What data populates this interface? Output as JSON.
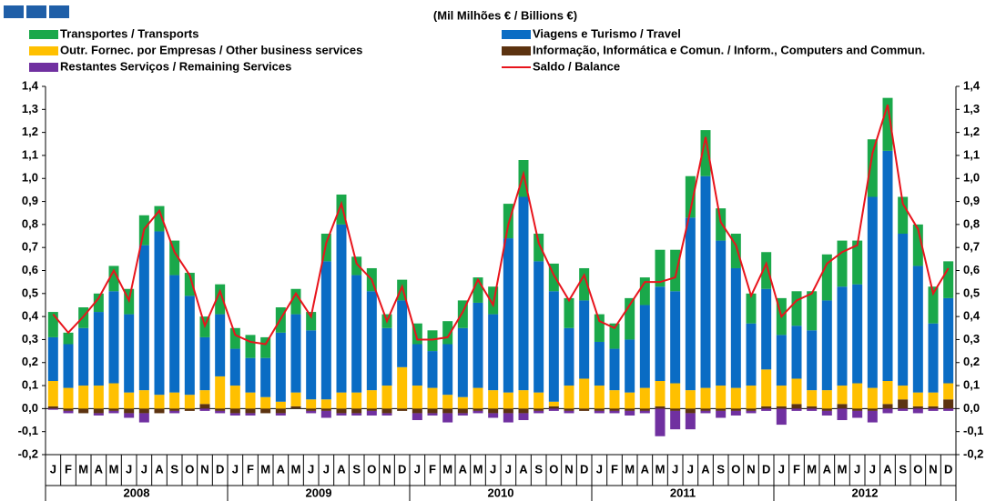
{
  "chart_data": {
    "type": "bar",
    "title": "(Mil Milhões € / Billions €)",
    "categories": [
      "J",
      "F",
      "M",
      "A",
      "M",
      "J",
      "J",
      "A",
      "S",
      "O",
      "N",
      "D",
      "J",
      "F",
      "M",
      "A",
      "M",
      "J",
      "J",
      "A",
      "S",
      "O",
      "N",
      "D",
      "J",
      "F",
      "M",
      "A",
      "M",
      "J",
      "J",
      "A",
      "S",
      "O",
      "N",
      "D",
      "J",
      "F",
      "M",
      "A",
      "M",
      "J",
      "J",
      "A",
      "S",
      "O",
      "N",
      "D",
      "J",
      "F",
      "M",
      "A",
      "M",
      "J",
      "J",
      "A",
      "S",
      "O",
      "N",
      "D"
    ],
    "years": [
      "2008",
      "2009",
      "2010",
      "2011",
      "2012"
    ],
    "series": [
      {
        "name": "Transportes / Transports",
        "color": "#1aa84a",
        "values": [
          0.11,
          0.05,
          0.09,
          0.08,
          0.11,
          0.11,
          0.13,
          0.11,
          0.15,
          0.1,
          0.09,
          0.13,
          0.09,
          0.1,
          0.09,
          0.11,
          0.11,
          0.08,
          0.12,
          0.13,
          0.08,
          0.1,
          0.06,
          0.09,
          0.09,
          0.09,
          0.1,
          0.12,
          0.11,
          0.12,
          0.15,
          0.16,
          0.12,
          0.12,
          0.13,
          0.14,
          0.12,
          0.11,
          0.18,
          0.12,
          0.16,
          0.18,
          0.18,
          0.2,
          0.14,
          0.15,
          0.13,
          0.16,
          0.16,
          0.15,
          0.17,
          0.2,
          0.2,
          0.19,
          0.25,
          0.23,
          0.16,
          0.18,
          0.16,
          0.16
        ]
      },
      {
        "name": "Viagens e Turismo / Travel",
        "color": "#0a6cc4",
        "values": [
          0.19,
          0.19,
          0.25,
          0.32,
          0.4,
          0.34,
          0.63,
          0.71,
          0.51,
          0.43,
          0.23,
          0.27,
          0.16,
          0.15,
          0.17,
          0.3,
          0.34,
          0.3,
          0.6,
          0.73,
          0.51,
          0.43,
          0.25,
          0.29,
          0.18,
          0.16,
          0.22,
          0.3,
          0.37,
          0.33,
          0.67,
          0.84,
          0.57,
          0.48,
          0.25,
          0.34,
          0.19,
          0.18,
          0.23,
          0.36,
          0.41,
          0.4,
          0.75,
          0.92,
          0.63,
          0.52,
          0.27,
          0.35,
          0.22,
          0.23,
          0.26,
          0.39,
          0.43,
          0.43,
          0.83,
          1.0,
          0.66,
          0.55,
          0.3,
          0.37
        ]
      },
      {
        "name": "Outr. Fornec. por Empresas  / Other business services",
        "color": "#ffc000",
        "values": [
          0.11,
          0.09,
          0.1,
          0.1,
          0.11,
          0.07,
          0.08,
          0.06,
          0.07,
          0.06,
          0.06,
          0.14,
          0.1,
          0.07,
          0.05,
          0.03,
          0.06,
          0.04,
          0.04,
          0.07,
          0.07,
          0.08,
          0.1,
          0.18,
          0.1,
          0.09,
          0.06,
          0.05,
          0.09,
          0.08,
          0.07,
          0.08,
          0.07,
          0.02,
          0.1,
          0.13,
          0.1,
          0.08,
          0.07,
          0.09,
          0.11,
          0.11,
          0.08,
          0.09,
          0.1,
          0.09,
          0.1,
          0.16,
          0.09,
          0.11,
          0.07,
          0.08,
          0.08,
          0.11,
          0.09,
          0.1,
          0.06,
          0.06,
          0.06,
          0.07
        ]
      },
      {
        "name": "Informação, Informática e Comun. / Inform., Computers and Commun.",
        "color": "#5c3310",
        "values": [
          0.01,
          -0.01,
          -0.02,
          -0.02,
          -0.01,
          -0.02,
          -0.02,
          -0.02,
          -0.01,
          -0.01,
          0.02,
          -0.01,
          -0.02,
          -0.02,
          -0.02,
          -0.02,
          0.01,
          -0.01,
          -0.01,
          -0.02,
          -0.02,
          -0.01,
          -0.02,
          -0.01,
          -0.02,
          -0.02,
          -0.02,
          -0.02,
          -0.01,
          -0.02,
          -0.02,
          -0.02,
          -0.01,
          0.01,
          -0.01,
          -0.01,
          -0.01,
          -0.01,
          -0.01,
          -0.01,
          0.01,
          -0.01,
          -0.02,
          -0.01,
          -0.01,
          -0.01,
          -0.01,
          0.01,
          0.01,
          0.02,
          0.01,
          -0.01,
          0.02,
          -0.01,
          -0.01,
          0.02,
          0.04,
          0.01,
          0.01,
          0.04
        ]
      },
      {
        "name": "Restantes Serviços / Remaining Services",
        "color": "#7030a0",
        "values": [
          -0.005,
          -0.01,
          0,
          -0.01,
          -0.01,
          -0.02,
          -0.04,
          0,
          -0.01,
          0,
          -0.01,
          -0.01,
          -0.01,
          -0.01,
          0,
          -0.01,
          0,
          -0.01,
          -0.03,
          -0.01,
          -0.01,
          -0.02,
          -0.01,
          0,
          -0.03,
          -0.01,
          -0.04,
          -0.01,
          -0.01,
          -0.02,
          -0.04,
          -0.03,
          -0.01,
          -0.01,
          -0.01,
          0,
          -0.01,
          -0.01,
          -0.02,
          -0.01,
          -0.12,
          -0.08,
          -0.07,
          -0.01,
          -0.03,
          -0.02,
          -0.01,
          -0.01,
          -0.07,
          -0.01,
          -0.01,
          -0.02,
          -0.05,
          -0.03,
          -0.05,
          -0.02,
          -0.01,
          -0.02,
          -0.01,
          -0.01
        ]
      },
      {
        "name": "Saldo / Balance",
        "color": "#e8141c",
        "type": "line",
        "values": [
          0.41,
          0.33,
          0.4,
          0.48,
          0.6,
          0.47,
          0.78,
          0.86,
          0.68,
          0.58,
          0.36,
          0.51,
          0.32,
          0.29,
          0.28,
          0.39,
          0.5,
          0.4,
          0.72,
          0.89,
          0.63,
          0.56,
          0.38,
          0.53,
          0.3,
          0.3,
          0.31,
          0.42,
          0.56,
          0.45,
          0.8,
          1.02,
          0.72,
          0.58,
          0.47,
          0.58,
          0.38,
          0.35,
          0.45,
          0.55,
          0.55,
          0.57,
          0.86,
          1.18,
          0.81,
          0.71,
          0.49,
          0.63,
          0.4,
          0.47,
          0.5,
          0.63,
          0.68,
          0.71,
          1.11,
          1.32,
          0.89,
          0.78,
          0.5,
          0.61
        ]
      }
    ],
    "ylim": [
      -0.2,
      1.4
    ],
    "yticks": [
      {
        "value": -0.2,
        "label": "-0,2"
      },
      {
        "value": -0.1,
        "label": "-0,1"
      },
      {
        "value": 0,
        "label": "0,0"
      },
      {
        "value": 0.1,
        "label": "0,1"
      },
      {
        "value": 0.2,
        "label": "0,2"
      },
      {
        "value": 0.3,
        "label": "0,3"
      },
      {
        "value": 0.4,
        "label": "0,4"
      },
      {
        "value": 0.5,
        "label": "0,5"
      },
      {
        "value": 0.6,
        "label": "0,6"
      },
      {
        "value": 0.7,
        "label": "0,7"
      },
      {
        "value": 0.8,
        "label": "0,8"
      },
      {
        "value": 0.9,
        "label": "0,9"
      },
      {
        "value": 1.0,
        "label": "1,0"
      },
      {
        "value": 1.1,
        "label": "1,1"
      },
      {
        "value": 1.2,
        "label": "1,2"
      },
      {
        "value": 1.3,
        "label": "1,3"
      },
      {
        "value": 1.4,
        "label": "1,4"
      }
    ],
    "grid": false
  }
}
